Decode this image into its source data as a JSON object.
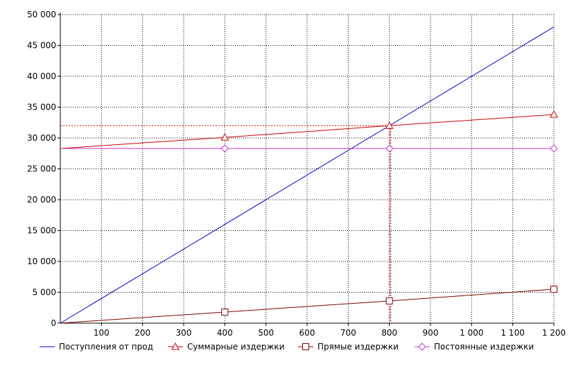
{
  "chart_data": {
    "type": "line",
    "title": "",
    "xlabel": "",
    "ylabel": "",
    "xlim": [
      0,
      1200
    ],
    "ylim": [
      0,
      50000
    ],
    "grid": true,
    "legend_position": "bottom",
    "x_ticks": [
      100,
      200,
      300,
      400,
      500,
      600,
      700,
      800,
      900,
      1000,
      1100,
      1200
    ],
    "x_tick_labels": [
      "100",
      "200",
      "300",
      "400",
      "500",
      "600",
      "700",
      "800",
      "900",
      "1 000",
      "1 100",
      "1 200"
    ],
    "y_ticks": [
      0,
      5000,
      10000,
      15000,
      20000,
      25000,
      30000,
      35000,
      40000,
      45000,
      50000
    ],
    "y_tick_labels": [
      "0",
      "5 000",
      "10 000",
      "15 000",
      "20 000",
      "25 000",
      "30 000",
      "35 000",
      "40 000",
      "45 000",
      "50 000"
    ],
    "series": [
      {
        "name": "Поступления от прод",
        "color": "#0000cc",
        "marker": "none",
        "points": [
          [
            0,
            0
          ],
          [
            1200,
            48000
          ]
        ]
      },
      {
        "name": "Суммарные издержки",
        "color": "#cc0000",
        "marker": "triangle",
        "points": [
          [
            0,
            28300
          ],
          [
            400,
            30100
          ],
          [
            800,
            32000
          ],
          [
            1200,
            33800
          ]
        ],
        "marker_points": [
          [
            400,
            30100
          ],
          [
            800,
            32000
          ],
          [
            1200,
            33800
          ]
        ]
      },
      {
        "name": "Прямые издержки",
        "color": "#800000",
        "marker": "square",
        "points": [
          [
            0,
            0
          ],
          [
            400,
            1800
          ],
          [
            800,
            3600
          ],
          [
            1200,
            5500
          ]
        ],
        "marker_points": [
          [
            400,
            1800
          ],
          [
            800,
            3600
          ],
          [
            1200,
            5500
          ]
        ]
      },
      {
        "name": "Постоянные издержки",
        "color": "#cc33cc",
        "marker": "diamond",
        "points": [
          [
            0,
            28300
          ],
          [
            1200,
            28300
          ]
        ],
        "marker_points": [
          [
            400,
            28300
          ],
          [
            800,
            28300
          ],
          [
            1200,
            28300
          ]
        ]
      }
    ],
    "annotations": {
      "break_even": {
        "x": 800,
        "y": 32000,
        "color": "#cc0000",
        "style": "dotted"
      }
    }
  }
}
